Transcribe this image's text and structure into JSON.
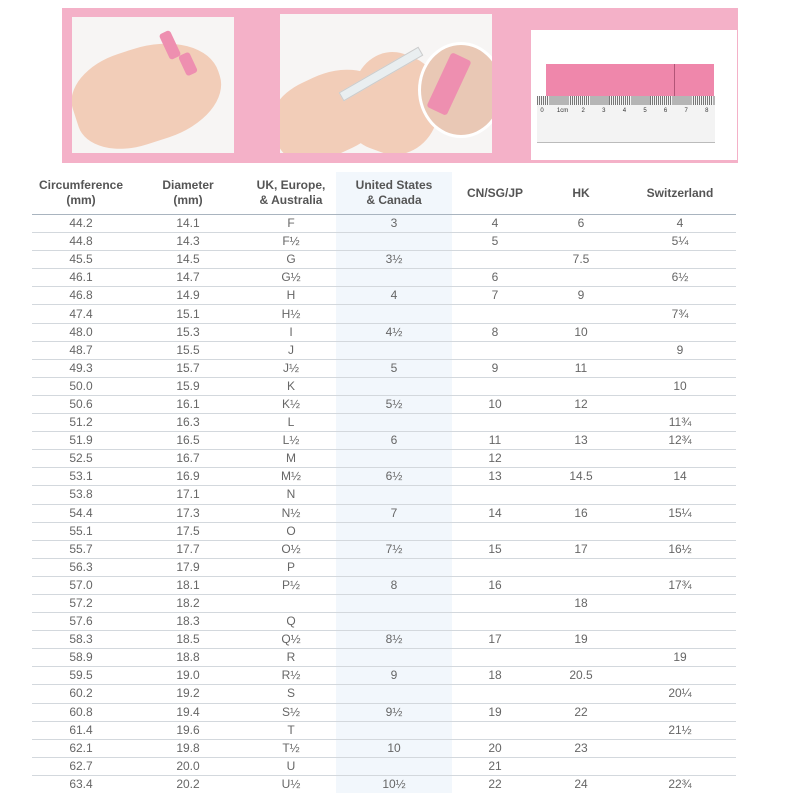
{
  "banner": {
    "photos": [
      "hand-with-paper-strip",
      "marking-strip-with-pen",
      "strip-on-ruler"
    ],
    "ruler_labels": [
      "0",
      "1cm",
      "2",
      "3",
      "4",
      "5",
      "6",
      "7",
      "8"
    ],
    "colors": {
      "pink": "#f4b1c8",
      "strip": "#ef87ab",
      "us_column": "#f2f7fc"
    }
  },
  "table": {
    "headers": [
      [
        "Circumference",
        "(mm)"
      ],
      [
        "Diameter",
        "(mm)"
      ],
      [
        "UK, Europe,",
        "& Australia"
      ],
      [
        "United States",
        "& Canada"
      ],
      [
        "CN/SG/JP",
        ""
      ],
      [
        "HK",
        ""
      ],
      [
        "Switzerland",
        ""
      ]
    ],
    "rows": [
      [
        "44.2",
        "14.1",
        "F",
        "3",
        "4",
        "6",
        "4"
      ],
      [
        "44.8",
        "14.3",
        "F½",
        "",
        "5",
        "",
        "5¼"
      ],
      [
        "45.5",
        "14.5",
        "G",
        "3½",
        "",
        "7.5",
        ""
      ],
      [
        "46.1",
        "14.7",
        "G½",
        "",
        "6",
        "",
        "6½"
      ],
      [
        "46.8",
        "14.9",
        "H",
        "4",
        "7",
        "9",
        ""
      ],
      [
        "47.4",
        "15.1",
        "H½",
        "",
        "",
        "",
        "7¾"
      ],
      [
        "48.0",
        "15.3",
        "I",
        "4½",
        "8",
        "10",
        ""
      ],
      [
        "48.7",
        "15.5",
        "J",
        "",
        "",
        "",
        "9"
      ],
      [
        "49.3",
        "15.7",
        "J½",
        "5",
        "9",
        "11",
        ""
      ],
      [
        "50.0",
        "15.9",
        "K",
        "",
        "",
        "",
        "10"
      ],
      [
        "50.6",
        "16.1",
        "K½",
        "5½",
        "10",
        "12",
        ""
      ],
      [
        "51.2",
        "16.3",
        "L",
        "",
        "",
        "",
        "11¾"
      ],
      [
        "51.9",
        "16.5",
        "L½",
        "6",
        "11",
        "13",
        "12¾"
      ],
      [
        "52.5",
        "16.7",
        "M",
        "",
        "12",
        "",
        ""
      ],
      [
        "53.1",
        "16.9",
        "M½",
        "6½",
        "13",
        "14.5",
        "14"
      ],
      [
        "53.8",
        "17.1",
        "N",
        "",
        "",
        "",
        ""
      ],
      [
        "54.4",
        "17.3",
        "N½",
        "7",
        "14",
        "16",
        "15¼"
      ],
      [
        "55.1",
        "17.5",
        "O",
        "",
        "",
        "",
        ""
      ],
      [
        "55.7",
        "17.7",
        "O½",
        "7½",
        "15",
        "17",
        "16½"
      ],
      [
        "56.3",
        "17.9",
        "P",
        "",
        "",
        "",
        ""
      ],
      [
        "57.0",
        "18.1",
        "P½",
        "8",
        "16",
        "",
        "17¾"
      ],
      [
        "57.2",
        "18.2",
        "",
        "",
        "",
        "18",
        ""
      ],
      [
        "57.6",
        "18.3",
        "Q",
        "",
        "",
        "",
        ""
      ],
      [
        "58.3",
        "18.5",
        "Q½",
        "8½",
        "17",
        "19",
        ""
      ],
      [
        "58.9",
        "18.8",
        "R",
        "",
        "",
        "",
        "19"
      ],
      [
        "59.5",
        "19.0",
        "R½",
        "9",
        "18",
        "20.5",
        ""
      ],
      [
        "60.2",
        "19.2",
        "S",
        "",
        "",
        "",
        "20¼"
      ],
      [
        "60.8",
        "19.4",
        "S½",
        "9½",
        "19",
        "22",
        ""
      ],
      [
        "61.4",
        "19.6",
        "T",
        "",
        "",
        "",
        "21½"
      ],
      [
        "62.1",
        "19.8",
        "T½",
        "10",
        "20",
        "23",
        ""
      ],
      [
        "62.7",
        "20.0",
        "U",
        "",
        "21",
        "",
        ""
      ],
      [
        "63.4",
        "20.2",
        "U½",
        "10½",
        "22",
        "24",
        "22¾"
      ]
    ]
  }
}
